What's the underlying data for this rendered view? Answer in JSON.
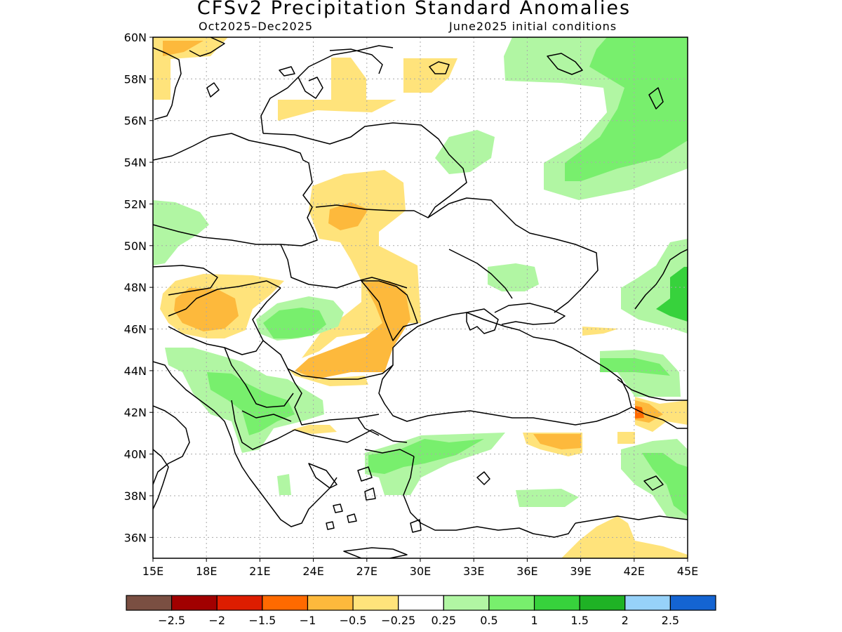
{
  "title": "CFSv2 Precipitation Standard Anomalies",
  "subtitle_left": "Oct2025–Dec2025",
  "subtitle_right": "June2025 initial conditions",
  "map": {
    "lon_range": [
      15,
      45
    ],
    "lat_range": [
      35,
      60
    ],
    "lon_ticks": [
      "15E",
      "18E",
      "21E",
      "24E",
      "27E",
      "30E",
      "33E",
      "36E",
      "39E",
      "42E",
      "45E"
    ],
    "lat_ticks": [
      "60N",
      "58N",
      "56N",
      "54N",
      "52N",
      "50N",
      "48N",
      "46N",
      "44N",
      "42N",
      "40N",
      "38N",
      "36N"
    ],
    "grid": true
  },
  "colorbar": {
    "colors": [
      "#7a4f42",
      "#a10000",
      "#dd1d00",
      "#ff6a00",
      "#fdb93c",
      "#ffe37b",
      "#ffffff",
      "#b1f6a3",
      "#78ef6d",
      "#37d23c",
      "#1fb225",
      "#97d2f9",
      "#1464d2"
    ],
    "labels": [
      "−2.5",
      "−2",
      "−1.5",
      "−1",
      "−0.5",
      "−0.25",
      "0.25",
      "0.5",
      "1",
      "1.5",
      "2",
      "2.5"
    ]
  }
}
